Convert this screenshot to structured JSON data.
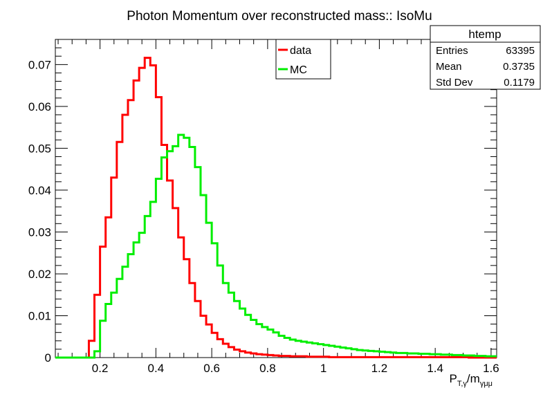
{
  "chart_data": {
    "type": "line",
    "title": "Photon Momentum over reconstructed mass:: IsoMu",
    "xlabel": {
      "main": "P",
      "sub1": "T,γ",
      "sep": "/m",
      "sub2": "γμμ"
    },
    "ylabel": "",
    "xlim": [
      0.04,
      1.62
    ],
    "ylim": [
      0,
      0.076
    ],
    "x_ticks": [
      0.2,
      0.4,
      0.6,
      0.8,
      1.0,
      1.2,
      1.4,
      1.6
    ],
    "x_tick_labels": [
      "0.2",
      "0.4",
      "0.6",
      "0.8",
      "1",
      "1.2",
      "1.4",
      "1.6"
    ],
    "y_ticks": [
      0,
      0.01,
      0.02,
      0.03,
      0.04,
      0.05,
      0.06,
      0.07
    ],
    "y_tick_labels": [
      "0",
      "0.01",
      "0.02",
      "0.03",
      "0.04",
      "0.05",
      "0.06",
      "0.07"
    ],
    "bin_edges": {
      "start": 0.04,
      "width": 0.02,
      "count": 79
    },
    "series": [
      {
        "name": "data",
        "color": "#ff0000",
        "values": [
          0,
          0,
          0,
          0,
          0,
          0,
          0.004,
          0.015,
          0.0265,
          0.0335,
          0.043,
          0.0515,
          0.058,
          0.0615,
          0.0662,
          0.0692,
          0.0716,
          0.0698,
          0.0622,
          0.0508,
          0.0423,
          0.0357,
          0.0287,
          0.0235,
          0.0178,
          0.0135,
          0.01,
          0.0079,
          0.0059,
          0.0044,
          0.0033,
          0.0025,
          0.0019,
          0.0015,
          0.0012,
          0.001,
          0.0008,
          0.0007,
          0.0006,
          0.0005,
          0.0004,
          0.0004,
          0.0003,
          0.0003,
          0.0003,
          0.0002,
          0.0002,
          0.0002,
          0.0002,
          0.0001,
          0.0001,
          0.0001,
          0.0001,
          0.0001,
          0.0001,
          0.0001,
          0.0001,
          0.0001,
          0.0001,
          0.0001,
          0.0001,
          0.0001,
          0.0001,
          0.0001,
          0.0001,
          0.0001,
          0.0001,
          0.0001,
          0.0001,
          0.0001,
          0.0001,
          0.0001,
          0.0001,
          0.0001,
          0,
          0,
          0,
          0,
          0
        ]
      },
      {
        "name": "MC",
        "color": "#00ee00",
        "values": [
          0,
          0,
          0,
          0,
          0,
          0,
          0,
          0.0015,
          0.0088,
          0.0128,
          0.0155,
          0.0188,
          0.0217,
          0.0247,
          0.0275,
          0.0298,
          0.0338,
          0.0372,
          0.0427,
          0.0478,
          0.0493,
          0.0505,
          0.0532,
          0.0525,
          0.0503,
          0.0455,
          0.0388,
          0.0322,
          0.0273,
          0.022,
          0.0178,
          0.0155,
          0.0135,
          0.0117,
          0.0102,
          0.009,
          0.008,
          0.0073,
          0.0067,
          0.006,
          0.0052,
          0.0047,
          0.0043,
          0.004,
          0.0038,
          0.0036,
          0.0034,
          0.0032,
          0.003,
          0.0028,
          0.0026,
          0.0024,
          0.0022,
          0.002,
          0.0018,
          0.0017,
          0.0016,
          0.0015,
          0.0014,
          0.0013,
          0.0012,
          0.0011,
          0.0011,
          0.001,
          0.001,
          0.0009,
          0.0009,
          0.0008,
          0.0008,
          0.0007,
          0.0007,
          0.0006,
          0.0006,
          0.0005,
          0.0005,
          0.0004,
          0.0004,
          0.0003,
          0.0003
        ]
      }
    ],
    "legend": {
      "placement": "top-center",
      "entries": [
        "data",
        "MC"
      ]
    },
    "grid": false
  },
  "stats_box": {
    "title": "htemp",
    "rows": [
      {
        "label": "Entries",
        "value": "63395"
      },
      {
        "label": "Mean",
        "value": "0.3735"
      },
      {
        "label": "Std Dev",
        "value": "0.1179"
      }
    ]
  }
}
